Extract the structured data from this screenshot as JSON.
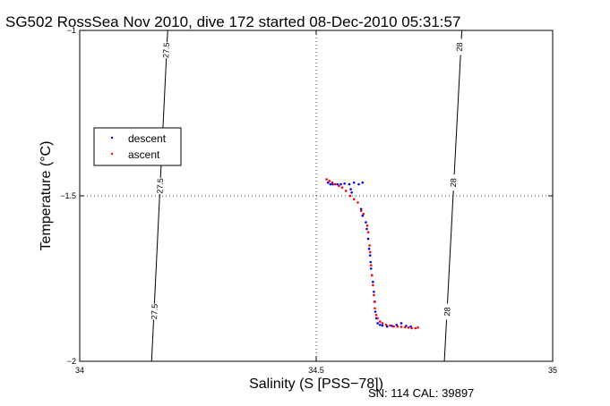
{
  "chart_data": {
    "type": "scatter",
    "title": "SG502 RossSea Nov 2010, dive 172 started 08-Dec-2010 05:31:57",
    "xlabel": "Salinity (S [PSS−78])",
    "ylabel": "Temperature (°C)",
    "xlim": [
      34,
      35
    ],
    "ylim": [
      -2,
      -1
    ],
    "xticks": [
      34,
      34.5,
      35
    ],
    "xtick_labels": [
      "34",
      "34.5",
      "35"
    ],
    "yticks": [
      -1,
      -1.5,
      -2
    ],
    "ytick_labels": [
      "−1",
      "−1.5",
      "−2"
    ],
    "grid": "dotted at major ticks",
    "legend_position": "left, upper middle",
    "colors": {
      "descent": "#0000ff",
      "ascent": "#ff0000",
      "axes": "#000000"
    },
    "contours": [
      {
        "label": "27.5",
        "points": [
          [
            34.186,
            -1.0
          ],
          [
            34.152,
            -2.0
          ]
        ],
        "label_at": [
          [
            34.183,
            -1.06
          ],
          [
            34.17,
            -1.47
          ],
          [
            34.158,
            -1.85
          ]
        ]
      },
      {
        "label": "28",
        "points": [
          [
            34.808,
            -1.0
          ],
          [
            34.771,
            -2.0
          ]
        ],
        "label_at": [
          [
            34.803,
            -1.05
          ],
          [
            34.79,
            -1.46
          ],
          [
            34.777,
            -1.85
          ]
        ]
      }
    ],
    "series": [
      {
        "name": "descent",
        "points": [
          [
            34.525,
            -1.46
          ],
          [
            34.53,
            -1.465
          ],
          [
            34.535,
            -1.465
          ],
          [
            34.545,
            -1.465
          ],
          [
            34.552,
            -1.465
          ],
          [
            34.56,
            -1.463
          ],
          [
            34.57,
            -1.465
          ],
          [
            34.58,
            -1.46
          ],
          [
            34.59,
            -1.465
          ],
          [
            34.598,
            -1.46
          ],
          [
            34.573,
            -1.48
          ],
          [
            34.575,
            -1.49
          ],
          [
            34.595,
            -1.54
          ],
          [
            34.598,
            -1.56
          ],
          [
            34.605,
            -1.58
          ],
          [
            34.607,
            -1.6
          ],
          [
            34.61,
            -1.63
          ],
          [
            34.612,
            -1.66
          ],
          [
            34.614,
            -1.68
          ],
          [
            34.615,
            -1.7
          ],
          [
            34.616,
            -1.72
          ],
          [
            34.618,
            -1.74
          ],
          [
            34.62,
            -1.76
          ],
          [
            34.622,
            -1.79
          ],
          [
            34.624,
            -1.82
          ],
          [
            34.625,
            -1.85
          ],
          [
            34.627,
            -1.87
          ],
          [
            34.63,
            -1.885
          ],
          [
            34.635,
            -1.89
          ],
          [
            34.64,
            -1.892
          ],
          [
            34.65,
            -1.895
          ],
          [
            34.66,
            -1.893
          ],
          [
            34.67,
            -1.89
          ],
          [
            34.68,
            -1.885
          ],
          [
            34.69,
            -1.893
          ],
          [
            34.7,
            -1.895
          ]
        ]
      },
      {
        "name": "ascent",
        "points": [
          [
            34.522,
            -1.45
          ],
          [
            34.528,
            -1.455
          ],
          [
            34.534,
            -1.46
          ],
          [
            34.54,
            -1.465
          ],
          [
            34.548,
            -1.47
          ],
          [
            34.555,
            -1.475
          ],
          [
            34.563,
            -1.485
          ],
          [
            34.572,
            -1.5
          ],
          [
            34.58,
            -1.51
          ],
          [
            34.588,
            -1.52
          ],
          [
            34.595,
            -1.545
          ],
          [
            34.6,
            -1.555
          ],
          [
            34.608,
            -1.59
          ],
          [
            34.61,
            -1.61
          ],
          [
            34.613,
            -1.65
          ],
          [
            34.614,
            -1.67
          ],
          [
            34.616,
            -1.71
          ],
          [
            34.618,
            -1.74
          ],
          [
            34.62,
            -1.77
          ],
          [
            34.622,
            -1.8
          ],
          [
            34.623,
            -1.82
          ],
          [
            34.624,
            -1.84
          ],
          [
            34.627,
            -1.86
          ],
          [
            34.63,
            -1.87
          ],
          [
            34.635,
            -1.88
          ],
          [
            34.64,
            -1.885
          ],
          [
            34.648,
            -1.89
          ],
          [
            34.656,
            -1.892
          ],
          [
            34.664,
            -1.895
          ],
          [
            34.672,
            -1.895
          ],
          [
            34.68,
            -1.896
          ],
          [
            34.688,
            -1.897
          ],
          [
            34.695,
            -1.898
          ],
          [
            34.702,
            -1.9
          ],
          [
            34.71,
            -1.9
          ],
          [
            34.715,
            -1.898
          ]
        ]
      }
    ],
    "legend": [
      {
        "label": "descent",
        "color": "#0000ff"
      },
      {
        "label": "ascent",
        "color": "#ff0000"
      }
    ]
  },
  "footer": {
    "serial": "SN: 114  CAL: 39897"
  }
}
